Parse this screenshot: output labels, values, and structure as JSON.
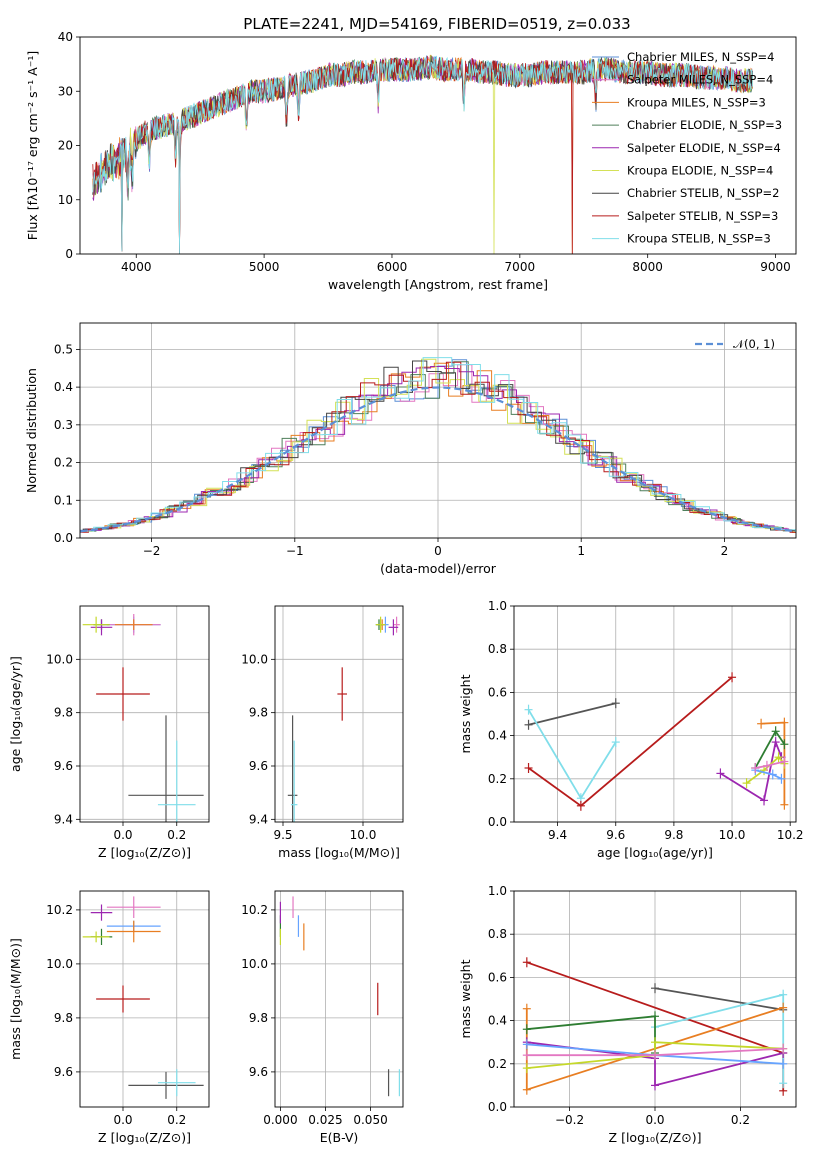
{
  "chart_data": [
    {
      "id": "spectrum",
      "type": "line",
      "title": "PLATE=2241, MJD=54169, FIBERID=0519, z=0.033",
      "xlabel": "wavelength [Angstrom, rest frame]",
      "ylabel": "Flux [fλ10⁻¹⁷ erg cm⁻² s⁻¹ A⁻¹]",
      "xlim": [
        3560,
        9160
      ],
      "ylim": [
        0,
        40
      ],
      "xticks": [
        "4000",
        "5000",
        "6000",
        "7000",
        "8000",
        "9000"
      ],
      "yticks": [
        "0",
        "10",
        "20",
        "30",
        "40"
      ],
      "grid": false,
      "legend_position": "top-right",
      "legend": [
        "Chabrier MILES, N_SSP=4",
        "Salpeter MILES, N_SSP=4",
        "Kroupa MILES, N_SSP=3",
        "Chabrier ELODIE, N_SSP=3",
        "Salpeter ELODIE, N_SSP=4",
        "Kroupa ELODIE, N_SSP=4",
        "Chabrier STELIB, N_SSP=2",
        "Salpeter STELIB, N_SSP=3",
        "Kroupa STELIB, N_SSP=3"
      ],
      "continuum": {
        "x": [
          3650,
          3700,
          3800,
          3900,
          4000,
          4100,
          4200,
          4300,
          4400,
          4500,
          4600,
          4700,
          4800,
          4900,
          5000,
          5100,
          5200,
          5300,
          5400,
          5500,
          5600,
          5700,
          5800,
          5900,
          6000,
          6100,
          6200,
          6300,
          6400,
          6500,
          6600,
          6700,
          6800,
          6900,
          7000,
          7100,
          7200,
          7300,
          7400,
          7500,
          7600,
          7700,
          7800,
          7900,
          8000,
          8100,
          8200,
          8300,
          8400,
          8500,
          8600,
          8700,
          8800
        ],
        "y": [
          13,
          14,
          17,
          18,
          21,
          23,
          23.5,
          24,
          25,
          26,
          27,
          28,
          29,
          30,
          30,
          30.5,
          31,
          31.5,
          32,
          33,
          33,
          33.5,
          33.5,
          34,
          34,
          34,
          34,
          34.5,
          34,
          34,
          34,
          33.5,
          33.5,
          33,
          33,
          33,
          33.5,
          33.5,
          33.5,
          33.5,
          34,
          34,
          33.5,
          33.5,
          33.5,
          33,
          33,
          33,
          32.5,
          32.5,
          32.5,
          32,
          32
        ]
      },
      "absorption_lines": [
        3934,
        3968,
        4102,
        4308,
        4341,
        4861,
        5175,
        5270,
        5893,
        6563,
        7594
      ],
      "deep_dips": [
        {
          "x": 3890,
          "y": 0.5
        },
        {
          "x": 4340,
          "y": 0
        },
        {
          "x": 6798,
          "y": 0
        },
        {
          "x": 7412,
          "y": 0
        }
      ]
    },
    {
      "id": "residuals",
      "type": "area",
      "xlabel": "(data-model)/error",
      "ylabel": "Normed distribution",
      "xlim": [
        -2.5,
        2.5
      ],
      "ylim": [
        0,
        0.57
      ],
      "xticks": [
        "−2",
        "−1",
        "0",
        "1",
        "2"
      ],
      "yticks": [
        "0.0",
        "0.1",
        "0.2",
        "0.3",
        "0.4",
        "0.5"
      ],
      "grid": true,
      "legend_position": "top-right",
      "legend": [
        "𝒩(0, 1)"
      ],
      "bin_width": 0.1
    },
    {
      "id": "age-vs-Z",
      "type": "scatter",
      "xlabel": "Z [log₁₀(Z/Z⊙)]",
      "ylabel": "age  [log₁₀(age/yr)]",
      "xlim": [
        -0.16,
        0.32
      ],
      "ylim": [
        9.39,
        10.2
      ],
      "xticks": [
        "0.0",
        "0.2"
      ],
      "yticks": [
        "9.4",
        "9.6",
        "9.8",
        "10.0"
      ],
      "grid": true,
      "points": [
        {
          "color": "#66a3ff",
          "x": 0.04,
          "y": 10.13,
          "xerr": 0.1,
          "yerr": 0.03
        },
        {
          "color": "#e377c2",
          "x": 0.04,
          "y": 10.13,
          "xerr": 0.1,
          "yerr": 0.04
        },
        {
          "color": "#e87e22",
          "x": 0.04,
          "y": 10.13,
          "xerr": 0.07,
          "yerr": 0.02
        },
        {
          "color": "#2e7d32",
          "x": -0.08,
          "y": 10.13,
          "xerr": 0.03,
          "yerr": 0.02
        },
        {
          "color": "#9c27b0",
          "x": -0.08,
          "y": 10.12,
          "xerr": 0.04,
          "yerr": 0.03
        },
        {
          "color": "#c5d82a",
          "x": -0.1,
          "y": 10.13,
          "xerr": 0.05,
          "yerr": 0.03
        },
        {
          "color": "#555555",
          "x": 0.16,
          "y": 9.49,
          "xerr": 0.14,
          "yerr": 0.3
        },
        {
          "color": "#b71c1c",
          "x": 0,
          "y": 9.87,
          "xerr": 0.1,
          "yerr": 0.1
        },
        {
          "color": "#80deea",
          "x": 0.2,
          "y": 9.455,
          "xerr": 0.07,
          "yerr": 0.24
        }
      ]
    },
    {
      "id": "age-vs-mass",
      "type": "scatter",
      "xlabel": "mass [log₁₀(M/M⊙)]",
      "ylabel": "",
      "xlim": [
        9.45,
        10.25
      ],
      "ylim": [
        9.39,
        10.2
      ],
      "xticks": [
        "9.5",
        "10.0"
      ],
      "yticks": [
        "9.4",
        "9.6",
        "9.8",
        "10.0"
      ],
      "grid": true,
      "points": [
        {
          "color": "#66a3ff",
          "x": 10.14,
          "y": 10.13,
          "xerr": 0.02,
          "yerr": 0.03
        },
        {
          "color": "#e377c2",
          "x": 10.21,
          "y": 10.13,
          "xerr": 0.02,
          "yerr": 0.03
        },
        {
          "color": "#e87e22",
          "x": 10.12,
          "y": 10.13,
          "xerr": 0.02,
          "yerr": 0.02
        },
        {
          "color": "#2e7d32",
          "x": 10.1,
          "y": 10.13,
          "xerr": 0.02,
          "yerr": 0.02
        },
        {
          "color": "#9c27b0",
          "x": 10.19,
          "y": 10.12,
          "xerr": 0.03,
          "yerr": 0.03
        },
        {
          "color": "#c5d82a",
          "x": 10.11,
          "y": 10.13,
          "xerr": 0.03,
          "yerr": 0.03
        },
        {
          "color": "#555555",
          "x": 9.56,
          "y": 9.49,
          "xerr": 0.03,
          "yerr": 0.3
        },
        {
          "color": "#b71c1c",
          "x": 9.87,
          "y": 9.87,
          "xerr": 0.03,
          "yerr": 0.1
        },
        {
          "color": "#80deea",
          "x": 9.57,
          "y": 9.455,
          "xerr": 0.02,
          "yerr": 0.24
        }
      ]
    },
    {
      "id": "weight-vs-age",
      "type": "line",
      "xlabel": "age  [log₁₀(age/yr)]",
      "ylabel": "mass weight",
      "xlim": [
        9.25,
        10.22
      ],
      "ylim": [
        0,
        1
      ],
      "xticks": [
        "9.4",
        "9.6",
        "9.8",
        "10.0",
        "10.2"
      ],
      "yticks": [
        "0.0",
        "0.2",
        "0.4",
        "0.6",
        "0.8",
        "1.0"
      ],
      "grid": true,
      "series": [
        {
          "color": "#555555",
          "x": [
            9.3,
            9.6
          ],
          "y": [
            0.45,
            0.55
          ]
        },
        {
          "color": "#80deea",
          "x": [
            9.3,
            9.48,
            9.6
          ],
          "y": [
            0.52,
            0.11,
            0.37
          ]
        },
        {
          "color": "#b71c1c",
          "x": [
            9.3,
            9.48,
            10.0
          ],
          "y": [
            0.25,
            0.075,
            0.67
          ]
        },
        {
          "color": "#e87e22",
          "x": [
            10.1,
            10.18,
            10.18
          ],
          "y": [
            0.455,
            0.46,
            0.08
          ]
        },
        {
          "color": "#2e7d32",
          "x": [
            10.08,
            10.15,
            10.18
          ],
          "y": [
            0.25,
            0.42,
            0.36
          ]
        },
        {
          "color": "#9c27b0",
          "x": [
            9.96,
            10.11,
            10.15,
            10.17
          ],
          "y": [
            0.225,
            0.1,
            0.37,
            0.3
          ]
        },
        {
          "color": "#c5d82a",
          "x": [
            10.05,
            10.11,
            10.16,
            10.18
          ],
          "y": [
            0.18,
            0.24,
            0.3,
            0.27
          ]
        },
        {
          "color": "#66a3ff",
          "x": [
            10.08,
            10.14,
            10.17
          ],
          "y": [
            0.24,
            0.22,
            0.2
          ]
        },
        {
          "color": "#e377c2",
          "x": [
            10.08,
            10.12,
            10.18
          ],
          "y": [
            0.25,
            0.26,
            0.28
          ]
        }
      ]
    },
    {
      "id": "mass-vs-Z",
      "type": "scatter",
      "xlabel": "Z [log₁₀(Z/Z⊙)]",
      "ylabel": "mass [log₁₀(M/M⊙)]",
      "xlim": [
        -0.16,
        0.32
      ],
      "ylim": [
        9.47,
        10.27
      ],
      "xticks": [
        "0.0",
        "0.2"
      ],
      "yticks": [
        "9.6",
        "9.8",
        "10.0",
        "10.2"
      ],
      "grid": true,
      "points": [
        {
          "color": "#66a3ff",
          "x": 0.04,
          "y": 10.14,
          "xerr": 0.1,
          "yerr": 0.02
        },
        {
          "color": "#e377c2",
          "x": 0.04,
          "y": 10.21,
          "xerr": 0.1,
          "yerr": 0.04
        },
        {
          "color": "#e87e22",
          "x": 0.04,
          "y": 10.12,
          "xerr": 0.1,
          "yerr": 0.04
        },
        {
          "color": "#2e7d32",
          "x": -0.08,
          "y": 10.1,
          "xerr": 0.04,
          "yerr": 0.03
        },
        {
          "color": "#9c27b0",
          "x": -0.08,
          "y": 10.19,
          "xerr": 0.04,
          "yerr": 0.03
        },
        {
          "color": "#c5d82a",
          "x": -0.1,
          "y": 10.1,
          "xerr": 0.05,
          "yerr": 0.02
        },
        {
          "color": "#555555",
          "x": 0.16,
          "y": 9.55,
          "xerr": 0.14,
          "yerr": 0.05
        },
        {
          "color": "#b71c1c",
          "x": 0,
          "y": 9.87,
          "xerr": 0.1,
          "yerr": 0.05
        },
        {
          "color": "#80deea",
          "x": 0.2,
          "y": 9.56,
          "xerr": 0.07,
          "yerr": 0.05
        }
      ]
    },
    {
      "id": "mass-vs-EBV",
      "type": "scatter",
      "xlabel": "E(B-V)",
      "ylabel": "",
      "xlim": [
        -0.003,
        0.068
      ],
      "ylim": [
        9.47,
        10.27
      ],
      "xticks": [
        "0.000",
        "0.025",
        "0.050"
      ],
      "yticks": [
        "9.6",
        "9.8",
        "10.0",
        "10.2"
      ],
      "grid": true,
      "points": [
        {
          "color": "#66a3ff",
          "x": 0.01,
          "y": 10.14,
          "xerr": 0,
          "yerr": 0.04
        },
        {
          "color": "#e377c2",
          "x": 0.007,
          "y": 10.21,
          "xerr": 0,
          "yerr": 0.04
        },
        {
          "color": "#e87e22",
          "x": 0.013,
          "y": 10.1,
          "xerr": 0,
          "yerr": 0.05
        },
        {
          "color": "#2e7d32",
          "x": 0,
          "y": 10.14,
          "xerr": 0,
          "yerr": 0.04
        },
        {
          "color": "#9c27b0",
          "x": 0,
          "y": 10.19,
          "xerr": 0,
          "yerr": 0.04
        },
        {
          "color": "#c5d82a",
          "x": 0,
          "y": 10.1,
          "xerr": 0,
          "yerr": 0.03
        },
        {
          "color": "#555555",
          "x": 0.06,
          "y": 9.56,
          "xerr": 0,
          "yerr": 0.05
        },
        {
          "color": "#b71c1c",
          "x": 0.054,
          "y": 9.87,
          "xerr": 0,
          "yerr": 0.06
        },
        {
          "color": "#80deea",
          "x": 0.066,
          "y": 9.56,
          "xerr": 0,
          "yerr": 0.05
        }
      ]
    },
    {
      "id": "weight-vs-Z",
      "type": "line",
      "xlabel": "Z [log₁₀(Z/Z⊙)]",
      "ylabel": "mass weight",
      "xlim": [
        -0.33,
        0.33
      ],
      "ylim": [
        0,
        1
      ],
      "xticks": [
        "−0.2",
        "0.0",
        "0.2"
      ],
      "yticks": [
        "0.0",
        "0.2",
        "0.4",
        "0.6",
        "0.8",
        "1.0"
      ],
      "grid": true,
      "series": [
        {
          "color": "#b71c1c",
          "x": [
            -0.3,
            0.3,
            0.3
          ],
          "y": [
            0.67,
            0.25,
            0.075
          ]
        },
        {
          "color": "#555555",
          "x": [
            0,
            0.3
          ],
          "y": [
            0.55,
            0.45
          ]
        },
        {
          "color": "#80deea",
          "x": [
            0,
            0.3,
            0.3
          ],
          "y": [
            0.37,
            0.52,
            0.11
          ]
        },
        {
          "color": "#e87e22",
          "x": [
            -0.3,
            -0.3,
            0.3
          ],
          "y": [
            0.455,
            0.08,
            0.46
          ]
        },
        {
          "color": "#2e7d32",
          "x": [
            -0.3,
            0,
            0
          ],
          "y": [
            0.36,
            0.42,
            0.25
          ]
        },
        {
          "color": "#9c27b0",
          "x": [
            -0.3,
            0,
            0,
            0.3
          ],
          "y": [
            0.3,
            0.225,
            0.1,
            0.25
          ]
        },
        {
          "color": "#c5d82a",
          "x": [
            -0.3,
            0,
            0,
            0.3
          ],
          "y": [
            0.18,
            0.24,
            0.3,
            0.27
          ]
        },
        {
          "color": "#66a3ff",
          "x": [
            -0.3,
            0,
            0.3
          ],
          "y": [
            0.29,
            0.24,
            0.2
          ]
        },
        {
          "color": "#e377c2",
          "x": [
            -0.3,
            0,
            0.3
          ],
          "y": [
            0.24,
            0.24,
            0.27
          ]
        }
      ]
    }
  ],
  "model_colors": [
    "#5b8fd6",
    "#e377c2",
    "#e87e22",
    "#4f7f5a",
    "#9c27b0",
    "#d4e157",
    "#444444",
    "#b71c1c",
    "#80deea"
  ]
}
